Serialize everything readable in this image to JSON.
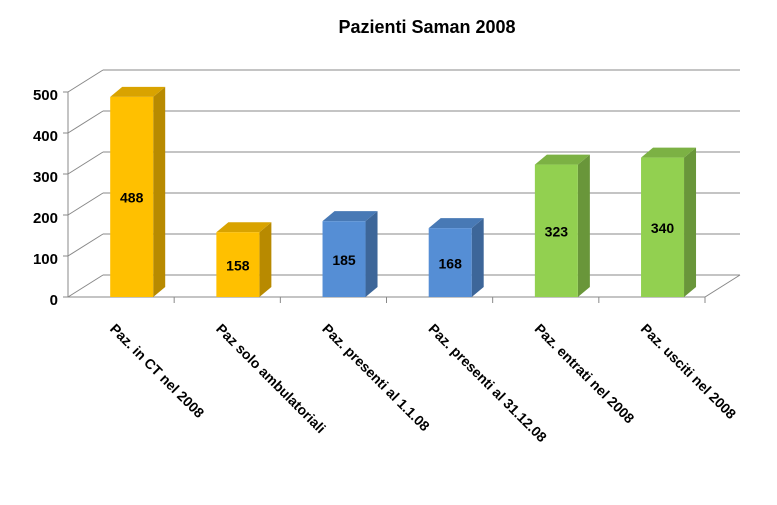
{
  "chart_data": {
    "type": "bar3d",
    "title": "Pazienti Saman 2008",
    "categories": [
      "Paz. in CT nel 2008",
      "Paz solo ambulatoriali",
      "Paz. presenti al 1.1.08",
      "Paz. presenti al 31.12.08",
      "Paz. entrati nel 2008",
      "Paz. usciti nel 2008"
    ],
    "values": [
      488,
      158,
      185,
      168,
      323,
      340
    ],
    "colors": [
      "#FFC000",
      "#FFC000",
      "#558ED5",
      "#558ED5",
      "#92D050",
      "#92D050"
    ],
    "ylim": [
      0,
      500
    ],
    "yticks": [
      0,
      100,
      200,
      300,
      400,
      500
    ],
    "grid": true
  }
}
